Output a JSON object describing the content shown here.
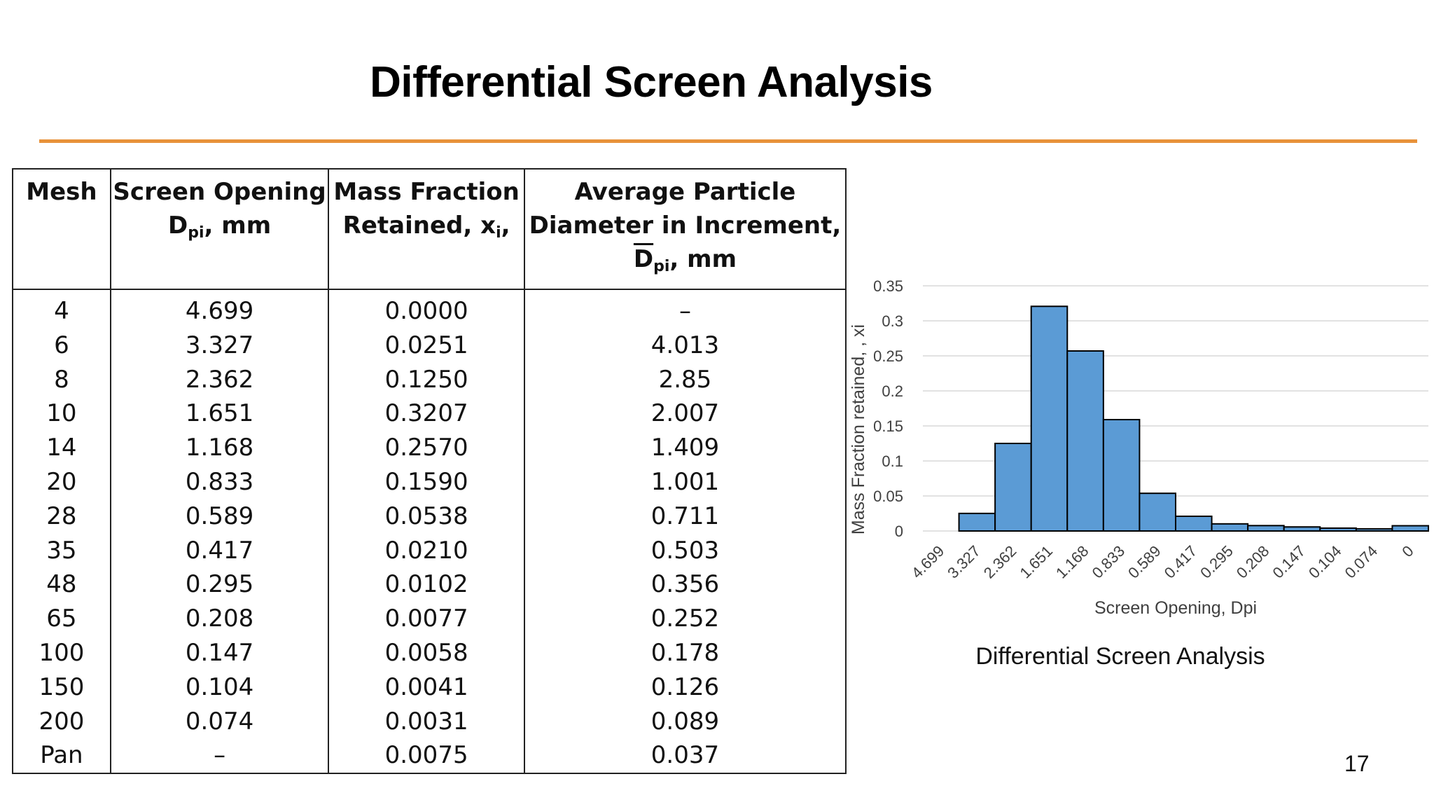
{
  "slide": {
    "title": "Differential Screen Analysis",
    "page_number": "17",
    "accent_color": "#e8923a"
  },
  "table": {
    "headers": {
      "mesh": "Mesh",
      "opening_line1": "Screen Opening",
      "opening_symbol": "D",
      "opening_sub": "pi",
      "opening_unit": ", mm",
      "fraction_line1": "Mass Fraction",
      "fraction_line2": "Retained, x",
      "fraction_sub": "i",
      "fraction_tail": ",",
      "avg_line1": "Average Particle",
      "avg_line2": "Diameter in Increment,",
      "avg_symbol": "D",
      "avg_sub": "pi",
      "avg_unit": ", mm"
    },
    "rows": [
      {
        "mesh": "4",
        "opening": "4.699",
        "fraction": "0.0000",
        "avg": "–"
      },
      {
        "mesh": "6",
        "opening": "3.327",
        "fraction": "0.0251",
        "avg": "4.013"
      },
      {
        "mesh": "8",
        "opening": "2.362",
        "fraction": "0.1250",
        "avg": "2.85"
      },
      {
        "mesh": "10",
        "opening": "1.651",
        "fraction": "0.3207",
        "avg": "2.007"
      },
      {
        "mesh": "14",
        "opening": "1.168",
        "fraction": "0.2570",
        "avg": "1.409"
      },
      {
        "mesh": "20",
        "opening": "0.833",
        "fraction": "0.1590",
        "avg": "1.001"
      },
      {
        "mesh": "28",
        "opening": "0.589",
        "fraction": "0.0538",
        "avg": "0.711"
      },
      {
        "mesh": "35",
        "opening": "0.417",
        "fraction": "0.0210",
        "avg": "0.503"
      },
      {
        "mesh": "48",
        "opening": "0.295",
        "fraction": "0.0102",
        "avg": "0.356"
      },
      {
        "mesh": "65",
        "opening": "0.208",
        "fraction": "0.0077",
        "avg": "0.252"
      },
      {
        "mesh": "100",
        "opening": "0.147",
        "fraction": "0.0058",
        "avg": "0.178"
      },
      {
        "mesh": "150",
        "opening": "0.104",
        "fraction": "0.0041",
        "avg": "0.126"
      },
      {
        "mesh": "200",
        "opening": "0.074",
        "fraction": "0.0031",
        "avg": "0.089"
      },
      {
        "mesh": "Pan",
        "opening": "–",
        "fraction": "0.0075",
        "avg": "0.037"
      }
    ]
  },
  "chart_data": {
    "type": "bar",
    "title": "",
    "xlabel": "Screen Opening, Dpi",
    "ylabel": "Mass Fraction retained, , xi",
    "categories": [
      "4.699",
      "3.327",
      "2.362",
      "1.651",
      "1.168",
      "0.833",
      "0.589",
      "0.417",
      "0.295",
      "0.208",
      "0.147",
      "0.104",
      "0.074",
      "0"
    ],
    "values": [
      0.0,
      0.0251,
      0.125,
      0.3207,
      0.257,
      0.159,
      0.0538,
      0.021,
      0.0102,
      0.0077,
      0.0058,
      0.0041,
      0.0031,
      0.0075
    ],
    "ylim": [
      0,
      0.35
    ],
    "yticks": [
      "0",
      "0.05",
      "0.1",
      "0.15",
      "0.2",
      "0.25",
      "0.3",
      "0.35"
    ],
    "grid": true,
    "bar_color": "#5b9bd5",
    "bar_edge_color": "#000000",
    "caption": "Differential Screen Analysis"
  }
}
